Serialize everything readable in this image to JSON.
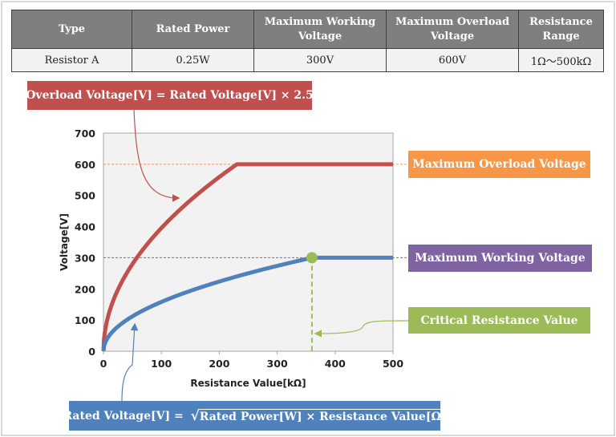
{
  "table": {
    "headers": [
      "Type",
      "Rated Power",
      "Maximum Working Voltage",
      "Maximum Overload Voltage",
      "Resistance Range"
    ],
    "row": [
      "Resistor A",
      "0.25W",
      "300V",
      "600V",
      "1Ω〜500kΩ"
    ]
  },
  "callouts": {
    "overload_formula": "Overload Voltage[V] = Rated Voltage[V] × 2.5",
    "max_overload": "Maximum Overload Voltage",
    "max_working": "Maximum Working Voltage",
    "critical": "Critical Resistance Value",
    "rated_formula_left": "Rated Voltage[V] = ",
    "rated_formula_sqrt": "√",
    "rated_formula_inner": "Rated Power[W] × Resistance Value[Ω]"
  },
  "colors": {
    "overload": "#c0504d",
    "rated": "#4f81bd",
    "critical": "#9bbb59",
    "max_overload": "#f79646",
    "max_working": "#8064a2"
  },
  "chart_data": {
    "type": "line",
    "xlabel": "Resistance Value[kΩ]",
    "ylabel": "Voltage[V]",
    "xlim": [
      0,
      500
    ],
    "ylim": [
      0,
      700
    ],
    "xticks": [
      "0",
      "100",
      "200",
      "300",
      "400",
      "500"
    ],
    "yticks": [
      "0",
      "100",
      "200",
      "300",
      "400",
      "500",
      "600",
      "700"
    ],
    "grid": false,
    "rated_power_w": 0.25,
    "max_working_voltage": 300,
    "max_overload_voltage": 600,
    "critical_resistance_kohm": 360,
    "series": [
      {
        "id": "overload",
        "formula": "min(2.5*sqrt(0.25*R), 600)"
      },
      {
        "id": "rated",
        "formula": "min(sqrt(0.25*R), 300)"
      }
    ]
  }
}
